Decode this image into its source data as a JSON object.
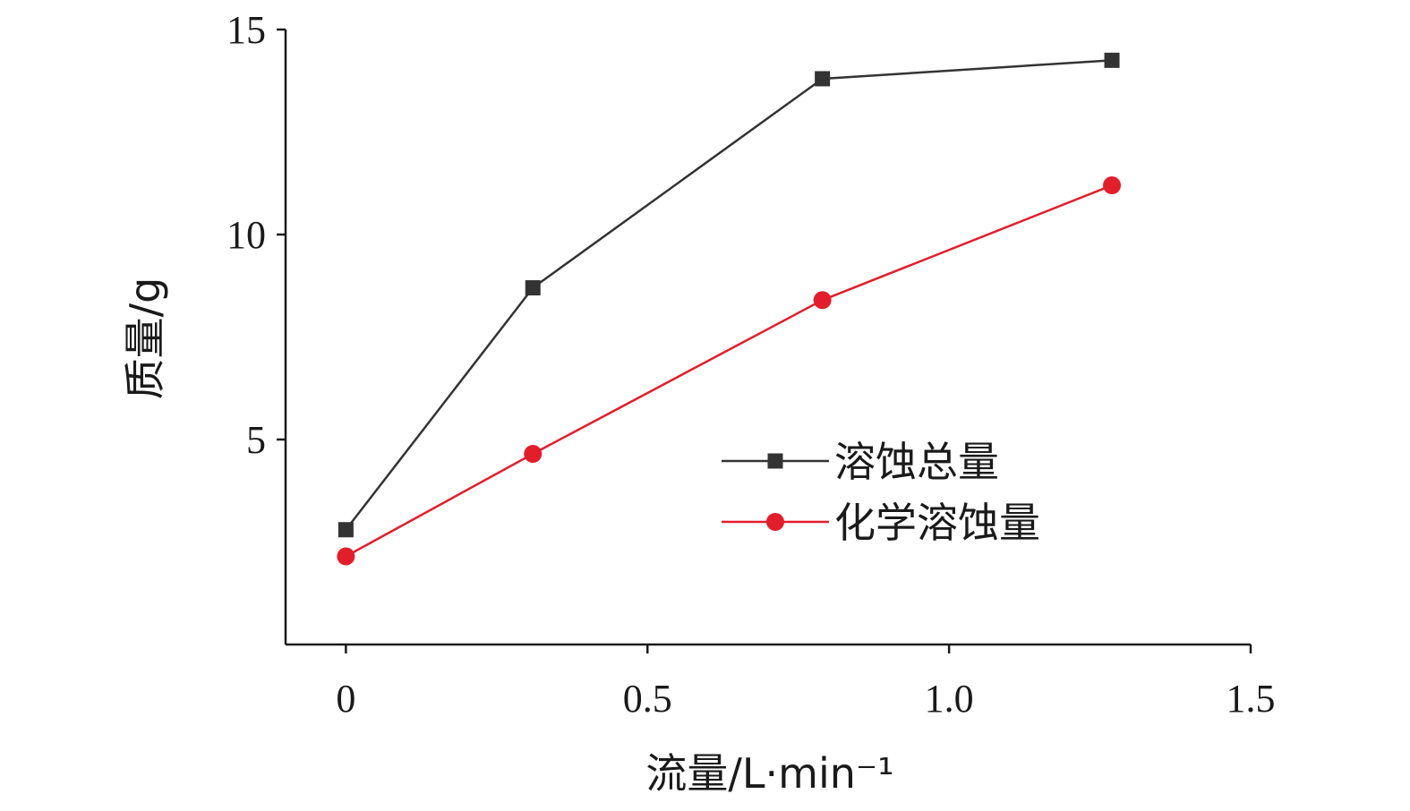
{
  "chart_data": {
    "type": "line",
    "xlabel": "流量/L·min⁻¹",
    "ylabel": "质量/g",
    "xlim": [
      -0.1,
      1.5
    ],
    "ylim": [
      0,
      15
    ],
    "x_ticks": [
      0,
      0.5,
      1.0,
      1.5
    ],
    "x_tick_labels": [
      "0",
      "0.5",
      "1.0",
      "1.5"
    ],
    "y_ticks": [
      5,
      10,
      15
    ],
    "y_tick_labels": [
      "5",
      "10",
      "15"
    ],
    "grid": false,
    "legend_position": "right-middle",
    "series": [
      {
        "name": "溶蚀总量",
        "color": "#333333",
        "marker": "square",
        "x": [
          0,
          0.31,
          0.79,
          1.27
        ],
        "y": [
          2.8,
          8.7,
          13.8,
          14.25
        ]
      },
      {
        "name": "化学溶蚀量",
        "color": "#e31e2b",
        "marker": "circle",
        "x": [
          0,
          0.31,
          0.79,
          1.27
        ],
        "y": [
          2.15,
          4.65,
          8.4,
          11.2
        ]
      }
    ]
  }
}
